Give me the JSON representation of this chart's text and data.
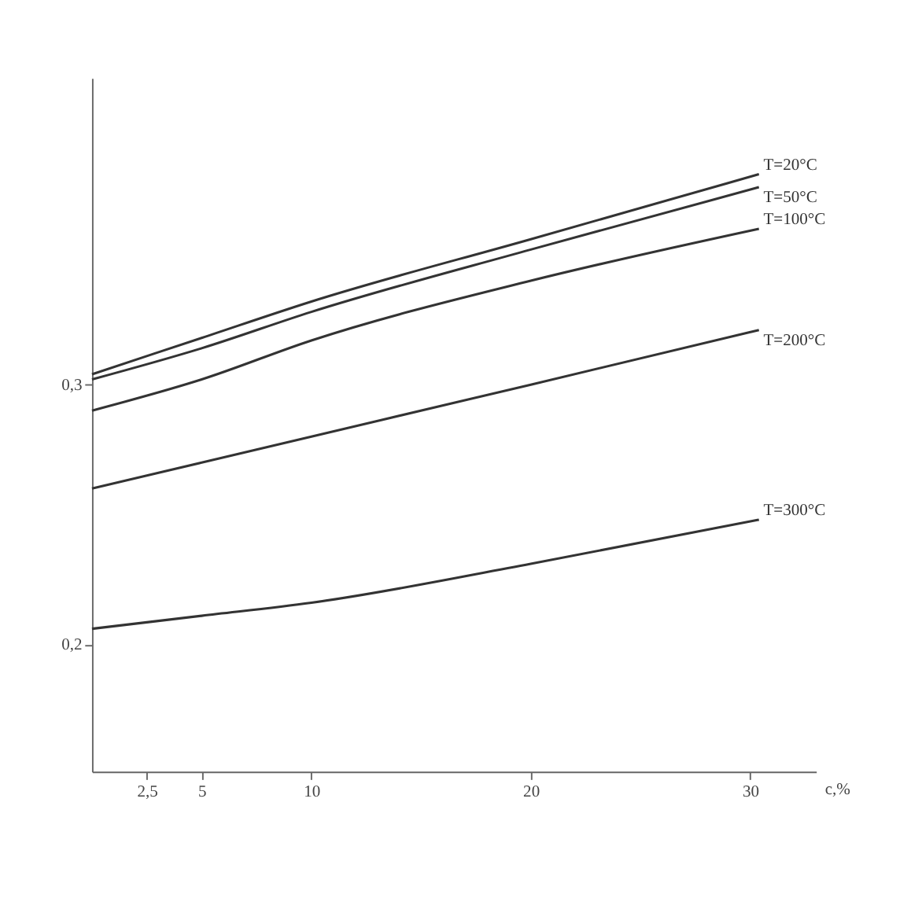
{
  "chart_data": {
    "type": "line",
    "xlabel": "c,%",
    "xlim": [
      0,
      33
    ],
    "ylim": [
      0.151,
      0.418
    ],
    "xticks": [
      {
        "value": 2.5,
        "label": "2,5"
      },
      5,
      10,
      20,
      30
    ],
    "yticks": [
      {
        "value": 0.2,
        "label": "0,2"
      },
      {
        "value": 0.3,
        "label": "0,3"
      }
    ],
    "grid": false,
    "legend": false,
    "marker": "none",
    "line_style": "solid",
    "series": [
      {
        "name": "T=20°C",
        "color": "#333333",
        "x": [
          0,
          5,
          10,
          20,
          30.4
        ],
        "values": [
          0.304,
          0.318,
          0.332,
          0.356,
          0.381
        ]
      },
      {
        "name": "T=50°C",
        "color": "#333333",
        "x": [
          0,
          5,
          10,
          20,
          30.4
        ],
        "values": [
          0.302,
          0.314,
          0.328,
          0.352,
          0.376
        ]
      },
      {
        "name": "T=100°C",
        "color": "#333333",
        "x": [
          0,
          5,
          10,
          20,
          30.4
        ],
        "values": [
          0.29,
          0.302,
          0.317,
          0.34,
          0.36
        ]
      },
      {
        "name": "T=200°C",
        "color": "#333333",
        "x": [
          0,
          5,
          10,
          20,
          30.4
        ],
        "values": [
          0.26,
          0.27,
          0.28,
          0.3,
          0.321
        ]
      },
      {
        "name": "T=300°C",
        "color": "#333333",
        "x": [
          0,
          5,
          10,
          20,
          30.4
        ],
        "values": [
          0.206,
          0.211,
          0.216,
          0.231,
          0.248
        ]
      }
    ]
  }
}
